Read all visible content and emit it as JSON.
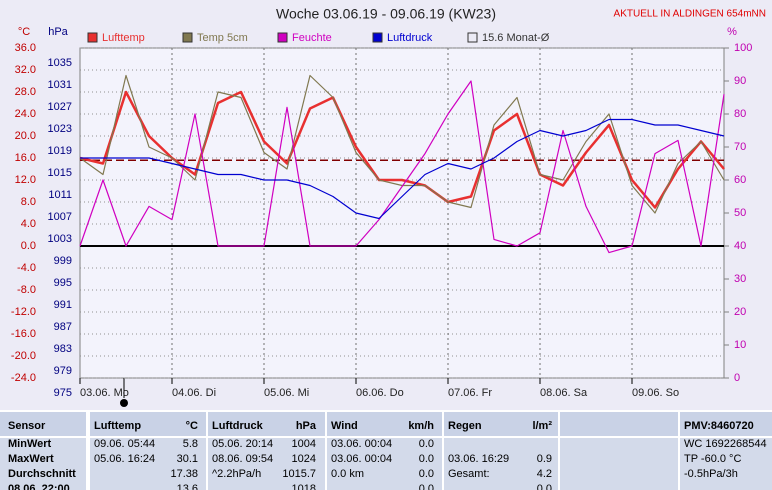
{
  "chart_data": {
    "type": "line",
    "title": "Woche 03.06.19 - 09.06.19 (KW23)",
    "annotation": "AKTUELL IN ALDINGEN 654mNN",
    "y_label": "°C",
    "y2_label": "hPa",
    "y3_label": "%",
    "x": [
      0,
      6,
      12,
      18,
      24,
      30,
      36,
      42,
      48,
      54,
      60,
      66,
      72,
      78,
      84,
      90,
      96,
      102,
      108,
      114,
      120,
      126,
      132,
      138,
      144,
      150,
      156,
      162,
      168
    ],
    "xlim": [
      0,
      168
    ],
    "xticks": [
      {
        "value": 0,
        "label": "03.06. Mo"
      },
      {
        "value": 24,
        "label": "04.06. Di"
      },
      {
        "value": 48,
        "label": "05.06. Mi"
      },
      {
        "value": 72,
        "label": "06.06. Do"
      },
      {
        "value": 96,
        "label": "07.06. Fr"
      },
      {
        "value": 120,
        "label": "08.06. Sa"
      },
      {
        "value": 144,
        "label": "09.06. So"
      }
    ],
    "ylim": [
      -24,
      36
    ],
    "yticks": [
      {
        "value": 36,
        "label": "36.0"
      },
      {
        "value": 32,
        "label": "32.0"
      },
      {
        "value": 28,
        "label": "28.0"
      },
      {
        "value": 24,
        "label": "24.0"
      },
      {
        "value": 20,
        "label": "20.0"
      },
      {
        "value": 16,
        "label": "16.0"
      },
      {
        "value": 12,
        "label": "12.0"
      },
      {
        "value": 8,
        "label": "8.0"
      },
      {
        "value": 4,
        "label": "4.0"
      },
      {
        "value": 0,
        "label": "0.0"
      },
      {
        "value": -4,
        "label": "-4.0"
      },
      {
        "value": -8,
        "label": "-8.0"
      },
      {
        "value": -12,
        "label": "-12.0"
      },
      {
        "value": -16,
        "label": "-16.0"
      },
      {
        "value": -20,
        "label": "-20.0"
      },
      {
        "value": -24,
        "label": "-24.0"
      }
    ],
    "y2lim": [
      975,
      1035
    ],
    "y2ticks": [
      1035,
      1031,
      1027,
      1023,
      1019,
      1015,
      1011,
      1007,
      1003,
      999,
      995,
      991,
      987,
      983,
      979,
      975
    ],
    "y3lim": [
      0,
      100
    ],
    "y3ticks": [
      100,
      90,
      80,
      70,
      60,
      50,
      40,
      30,
      20,
      10,
      0
    ],
    "grid": true,
    "series": [
      {
        "name": "Lufttemp",
        "color": "#e83030",
        "values": [
          16,
          15,
          28,
          20,
          16,
          13,
          26,
          28,
          19,
          15,
          25,
          27,
          18,
          12,
          12,
          11,
          8,
          9,
          21,
          24,
          13,
          11,
          17,
          22,
          12,
          7,
          14,
          19,
          14
        ]
      },
      {
        "name": "Temp 5cm",
        "color": "#807850",
        "values": [
          16,
          13,
          31,
          18,
          16,
          12,
          28,
          27,
          17,
          14,
          31,
          27,
          17,
          12,
          11,
          11,
          8,
          7,
          22,
          27,
          13,
          12,
          19,
          24,
          11,
          6,
          15,
          19,
          12
        ]
      },
      {
        "name": "Feuchte",
        "color": "#d000c0",
        "axis": "y3",
        "values": [
          40,
          60,
          40,
          52,
          48,
          80,
          40,
          40,
          40,
          82,
          40,
          40,
          40,
          48,
          58,
          68,
          80,
          90,
          42,
          40,
          44,
          75,
          52,
          38,
          40,
          68,
          72,
          40,
          86
        ]
      },
      {
        "name": "Luftdruck",
        "color": "#0000d0",
        "axis": "y2",
        "values": [
          1015,
          1015,
          1015,
          1015,
          1014,
          1013,
          1012,
          1012,
          1011,
          1011,
          1010,
          1008,
          1005,
          1004,
          1008,
          1012,
          1014,
          1013,
          1015,
          1018,
          1020,
          1019,
          1020,
          1022,
          1022,
          1021,
          1021,
          1020,
          1019
        ]
      }
    ],
    "reference_lines": [
      {
        "name": "15.6 Monat-Ø",
        "value": 15.6,
        "color": "#800000"
      }
    ]
  },
  "table": {
    "rows": [
      [
        "Sensor",
        "Lufttemp",
        "°C",
        "Luftdruck",
        "hPa",
        "Wind",
        "km/h",
        "Regen",
        "l/m²",
        "PMV:8460720"
      ],
      [
        "MinWert",
        "09.06.  05:44",
        "5.8",
        "05.06.  20:14",
        "1004",
        "03.06.  00:04",
        "0.0",
        null,
        null,
        "WC 1692268544"
      ],
      [
        "MaxWert",
        "05.06.  16:24",
        "30.1",
        "08.06.  09:54",
        "1024",
        "03.06.  00:04",
        "0.0",
        "03.06.  16:29",
        "0.9",
        "TP -60.0 °C"
      ],
      [
        "Durchschnitt",
        null,
        "17.38",
        "^2.2hPa/h",
        "1015.7",
        "0.0 km",
        "0.0",
        "Gesamt:",
        "4.2",
        "-0.5hPa/3h"
      ],
      [
        "08.06.  22:00",
        null,
        "13.6",
        null,
        "1018",
        null,
        "0.0",
        null,
        "0.0",
        null
      ]
    ]
  }
}
